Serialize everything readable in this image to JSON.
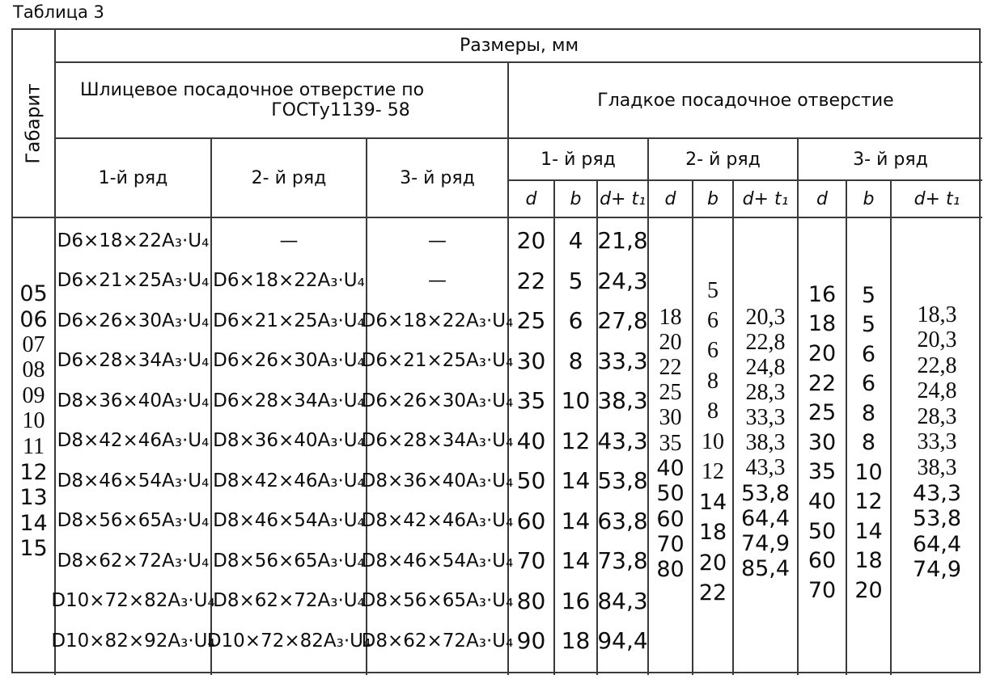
{
  "title": "Таблица 3",
  "header": {
    "gabarit": "Габарит",
    "razmery": "Размеры, мм",
    "shlitsevoe_line1": "Шлицевое посадочное отверстие по",
    "shlitsevoe_line2": "ГОСТу1139- 58",
    "gladkoe": "Гладкое посадочное отверстие",
    "shl_ryad": [
      "1-й ряд",
      "2- й ряд",
      "3- й ряд"
    ],
    "gl_ryad": [
      "1- й ряд",
      "2- й ряд",
      "3- й ряд"
    ],
    "sub_d": "d",
    "sub_b": "b",
    "sub_dt": "d+ t₁"
  },
  "columns": {
    "gabarit": [
      "05",
      "06",
      "07",
      "08",
      "09",
      "10",
      "11",
      "12",
      "13",
      "14",
      "15"
    ],
    "shl_ryad1": [
      "D6×18×22A₃·U₄",
      "D6×21×25A₃·U₄",
      "D6×26×30A₃·U₄",
      "D6×28×34A₃·U₄",
      "D8×36×40A₃·U₄",
      "D8×42×46A₃·U₄",
      "D8×46×54A₃·U₄",
      "D8×56×65A₃·U₄",
      "D8×62×72A₃·U₄",
      "D10×72×82A₃·U₄",
      "D10×82×92A₃·U₄"
    ],
    "shl_ryad2": [
      "—",
      "D6×18×22A₃·U₄",
      "D6×21×25A₃·U₄",
      "D6×26×30A₃·U₄",
      "D6×28×34A₃·U₄",
      "D8×36×40A₃·U₄",
      "D8×42×46A₃·U₄",
      "D8×46×54A₃·U₄",
      "D8×56×65A₃·U₄",
      "D8×62×72A₃·U₄",
      "D10×72×82A₃·U₄"
    ],
    "shl_ryad3": [
      "—",
      "—",
      "D6×18×22A₃·U₄",
      "D6×21×25A₃·U₄",
      "D6×26×30A₃·U₄",
      "D6×28×34A₃·U₄",
      "D8×36×40A₃·U₄",
      "D8×42×46A₃·U₄",
      "D8×46×54A₃·U₄",
      "D8×56×65A₃·U₄",
      "D8×62×72A₃·U₄"
    ],
    "gl1_d": [
      "20",
      "22",
      "25",
      "30",
      "35",
      "40",
      "50",
      "60",
      "70",
      "80",
      "90"
    ],
    "gl1_b": [
      "4",
      "5",
      "6",
      "8",
      "10",
      "12",
      "14",
      "14",
      "14",
      "16",
      "18"
    ],
    "gl1_dt": [
      "21,8",
      "24,3",
      "27,8",
      "33,3",
      "38,3",
      "43,3",
      "53,8",
      "63,8",
      "73,8",
      "84,3",
      "94,4"
    ],
    "gl2_d": [
      "18",
      "20",
      "22",
      "25",
      "30",
      "35",
      "40",
      "50",
      "60",
      "70",
      "80"
    ],
    "gl2_b": [
      "5",
      "6",
      "6",
      "8",
      "8",
      "10",
      "12",
      "14",
      "18",
      "20",
      "22"
    ],
    "gl2_dt": [
      "20,3",
      "22,8",
      "24,8",
      "28,3",
      "33,3",
      "38,3",
      "43,3",
      "53,8",
      "64,4",
      "74,9",
      "85,4"
    ],
    "gl3_d": [
      "16",
      "18",
      "20",
      "22",
      "25",
      "30",
      "35",
      "40",
      "50",
      "60",
      "70"
    ],
    "gl3_b": [
      "5",
      "5",
      "6",
      "6",
      "8",
      "8",
      "10",
      "12",
      "14",
      "18",
      "20"
    ],
    "gl3_dt": [
      "18,3",
      "20,3",
      "22,8",
      "24,8",
      "28,3",
      "33,3",
      "38,3",
      "43,3",
      "53,8",
      "64,4",
      "74,9"
    ]
  },
  "colors": {
    "ink": "#0d0d0d",
    "line": "#3a3a3a",
    "background": "#ffffff"
  }
}
